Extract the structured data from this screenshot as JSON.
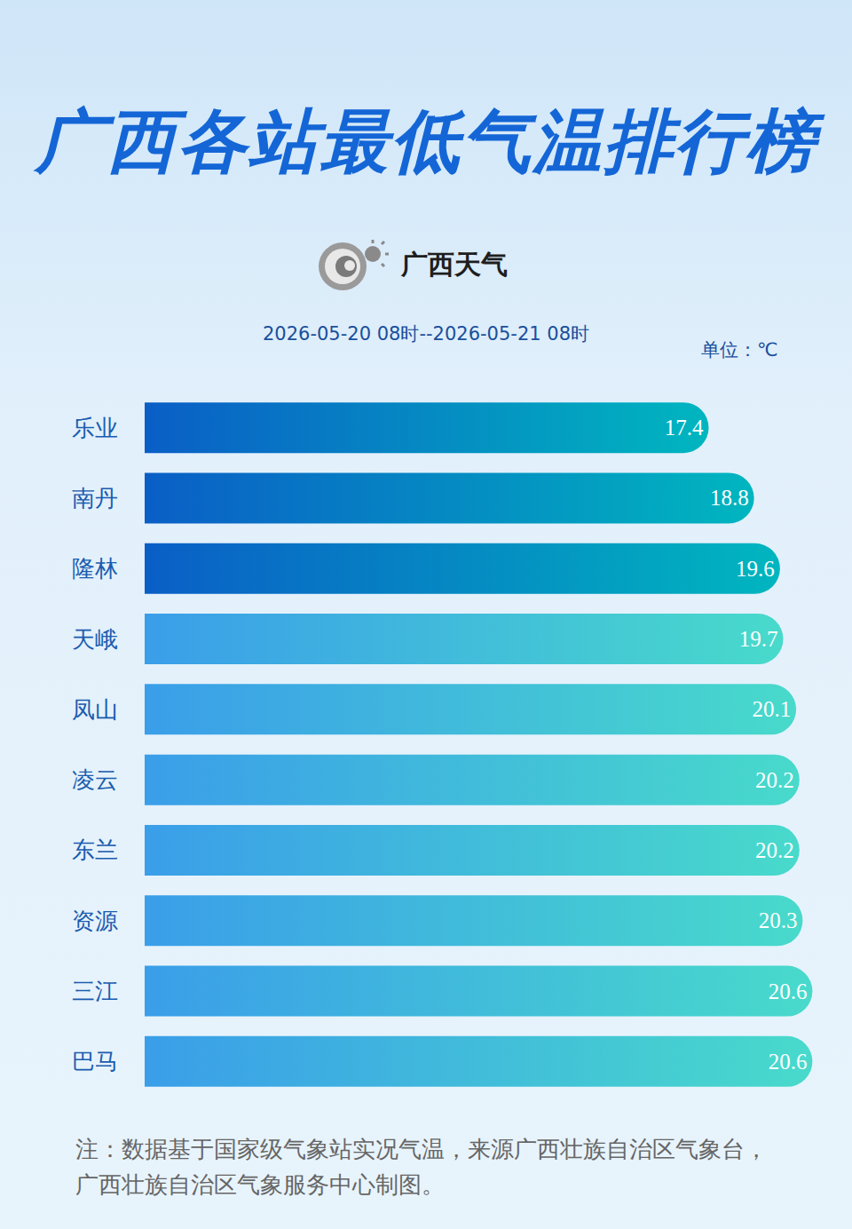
{
  "chart_data": {
    "type": "bar",
    "title": "广西各站最低气温排行榜",
    "brand": "广西天气",
    "subtitle": "2026-05-20 08时--2026-05-21 08时",
    "unit": "单位：℃",
    "note": "注：数据基于国家级气象站实况气温，来源广西壮族自治区气象台，广西壮族自治区气象服务中心制图。",
    "orientation": "horizontal",
    "categories": [
      "乐业",
      "南丹",
      "隆林",
      "天峨",
      "凤山",
      "凌云",
      "东兰",
      "资源",
      "三江",
      "巴马"
    ],
    "values": [
      17.4,
      18.8,
      19.6,
      19.7,
      20.1,
      20.2,
      20.2,
      20.3,
      20.6,
      20.6
    ],
    "colors": [
      "#0a5ec6",
      "#0a5ec6",
      "#0a5ec6",
      "#3a9ee9",
      "#3a9ee9",
      "#3a9ee9",
      "#3a9ee9",
      "#3a9ee9",
      "#3a9ee9",
      "#3a9ee9"
    ],
    "xlim": [
      0,
      21
    ],
    "data_labels": true,
    "grid": false,
    "tick_labels": "y"
  }
}
